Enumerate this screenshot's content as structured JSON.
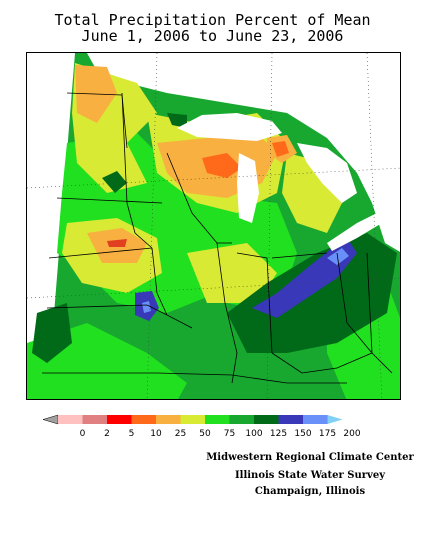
{
  "title": {
    "line1": "Total Precipitation Percent of Mean",
    "line2": "June 1, 2006 to June 23, 2006"
  },
  "legend": {
    "labels": [
      "0",
      "2",
      "5",
      "10",
      "25",
      "50",
      "75",
      "100",
      "125",
      "150",
      "175",
      "200"
    ],
    "colors": [
      "#a0a0a0",
      "#ffc0c0",
      "#e08080",
      "#ff0000",
      "#ff6a1a",
      "#f8b040",
      "#d8ea34",
      "#20e020",
      "#18a830",
      "#006a18",
      "#3838b8",
      "#6890f8",
      "#80d0f8"
    ]
  },
  "credits": {
    "line1": "Midwestern Regional Climate Center",
    "line2": "Illinois State Water Survey",
    "line3": "Champaign, Illinois"
  },
  "map_colors": {
    "background": "#18a830",
    "water": "#ffffff",
    "outside": "#ffffff",
    "light_green": "#20e020",
    "yellow": "#d8ea34",
    "orange": "#f8b040",
    "orange_red": "#ff6a1a",
    "red": "#e04020",
    "dark_green": "#006a18",
    "blue": "#3838b8",
    "light_blue": "#6890f8"
  }
}
